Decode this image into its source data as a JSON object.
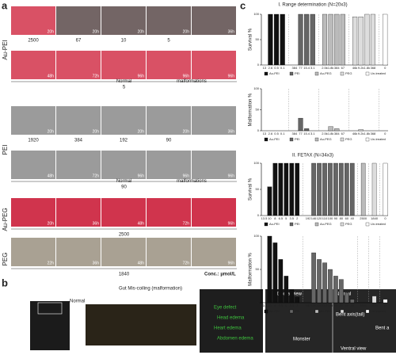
{
  "panel_a": {
    "label": "a",
    "unit": "Conc.: µmol/L",
    "groups": [
      {
        "name": "Au-PEI",
        "tint": "#d2324a",
        "rows": [
          {
            "times": [
              "20h",
              "20h",
              "20h",
              "20h",
              "36h"
            ],
            "concs": [
              "2500",
              "67",
              "10",
              "5"
            ]
          },
          {
            "times": [
              "48h",
              "72h",
              "96h",
              "96h",
              "96h"
            ],
            "concs": [
              "5"
            ],
            "normal": "Normal",
            "malformations": "malformations"
          }
        ]
      },
      {
        "name": "PEI",
        "tint": "#8a8a8a",
        "rows": [
          {
            "times": [
              "20h",
              "20h",
              "20h",
              "20h",
              "36h"
            ],
            "concs": [
              "1920",
              "384",
              "192",
              "90"
            ]
          },
          {
            "times": [
              "48h",
              "72h",
              "96h",
              "96h",
              "96h"
            ],
            "concs": [
              "90"
            ],
            "normal": "Normal",
            "malformations": "malformations"
          }
        ]
      },
      {
        "name": "Au-PEG",
        "tint": "#c8102e",
        "rows": [
          {
            "times": [
              "20h",
              "36h",
              "48h",
              "72h",
              "96h"
            ],
            "concs": [
              "2500"
            ]
          }
        ]
      },
      {
        "name": "PEG",
        "tint": "#9a9080",
        "rows": [
          {
            "times": [
              "22h",
              "36h",
              "48h",
              "72h",
              "96h"
            ],
            "concs": [
              "1840"
            ]
          }
        ]
      }
    ]
  },
  "panel_b": {
    "label": "b",
    "title": "Gut Mis-coiling (malformation)",
    "normal": "Normal",
    "left_labels": [
      "Eye defect",
      "Head edema",
      "Heart edema",
      "Abdomen edema"
    ],
    "right_labels": [
      "Dorsal view",
      "Normal",
      "Bent axis(tail)",
      "Bent a",
      "Monster",
      "Ventral view"
    ]
  },
  "panel_c": {
    "label": "c",
    "sections": [
      "I. Range determination (N=20x3)",
      "II. FETAX (N=34x3)"
    ]
  },
  "chart_data": [
    {
      "type": "bar",
      "ylabel": "Survival %",
      "ylim": [
        0,
        100
      ],
      "yticks": [
        0,
        50,
        100
      ],
      "series": [
        {
          "name": "Au-PEI",
          "color": "#111111",
          "categories": [
            "13",
            "2.6",
            "0.5",
            "0.1"
          ],
          "values": [
            0,
            100,
            100,
            100
          ]
        },
        {
          "name": "PEI",
          "color": "#666666",
          "categories": [
            "384",
            "77",
            "15.4",
            "3.1"
          ],
          "values": [
            0,
            100,
            100,
            100
          ]
        },
        {
          "name": "Au-PEG",
          "color": "#bbbbbb",
          "categories": [
            "2.5k",
            "1.8k",
            "384",
            "67"
          ],
          "values": [
            100,
            100,
            100,
            100
          ]
        },
        {
          "name": "PEG",
          "color": "#dddddd",
          "categories": [
            "46k",
            "9.2k",
            "1.8k",
            "368"
          ],
          "values": [
            95,
            95,
            100,
            100
          ]
        },
        {
          "name": "Un-treated",
          "color": "#ffffff",
          "categories": [
            "0"
          ],
          "values": [
            100
          ]
        }
      ]
    },
    {
      "type": "bar",
      "ylabel": "Malformation %",
      "ylim": [
        0,
        100
      ],
      "yticks": [
        0,
        50,
        100
      ],
      "series": [
        {
          "name": "Au-PEI",
          "color": "#111111",
          "categories": [
            "13",
            "2.6",
            "0.5",
            "0.1"
          ],
          "values": [
            null,
            0,
            0,
            0
          ]
        },
        {
          "name": "PEI",
          "color": "#666666",
          "categories": [
            "384",
            "77",
            "15.4",
            "3.1"
          ],
          "values": [
            null,
            30,
            5,
            0
          ]
        },
        {
          "name": "Au-PEG",
          "color": "#bbbbbb",
          "categories": [
            "2.5k",
            "1.8k",
            "384",
            "67"
          ],
          "values": [
            0,
            10,
            5,
            0
          ]
        },
        {
          "name": "PEG",
          "color": "#dddddd",
          "categories": [
            "46k",
            "9.2k",
            "1.8k",
            "368"
          ],
          "values": [
            0,
            3,
            0,
            0
          ]
        },
        {
          "name": "Un-treated",
          "color": "#ffffff",
          "categories": [
            "0"
          ],
          "values": [
            0
          ]
        }
      ]
    },
    {
      "type": "bar",
      "ylabel": "Survival %",
      "ylim": [
        0,
        100
      ],
      "yticks": [
        0,
        50,
        100
      ],
      "series": [
        {
          "name": "Au-PEI",
          "color": "#111111",
          "categories": [
            "13.5",
            "10",
            "8",
            "6.5",
            "5",
            "3.5",
            "2"
          ],
          "values": [
            0,
            55,
            100,
            100,
            100,
            100,
            100
          ]
        },
        {
          "name": "PEI",
          "color": "#666666",
          "categories": [
            "192",
            "146",
            "120",
            "110",
            "100",
            "90",
            "80",
            "60",
            "40"
          ],
          "values": [
            0,
            100,
            100,
            100,
            100,
            100,
            100,
            100,
            100
          ]
        },
        {
          "name": "Au-PEG",
          "color": "#bbbbbb",
          "categories": [
            "2500"
          ],
          "values": [
            100
          ]
        },
        {
          "name": "PEG",
          "color": "#dddddd",
          "categories": [
            "1840"
          ],
          "values": [
            100
          ]
        },
        {
          "name": "Un-treated",
          "color": "#ffffff",
          "categories": [
            "0"
          ],
          "values": [
            100
          ]
        }
      ]
    },
    {
      "type": "bar",
      "ylabel": "Malformation %",
      "ylim": [
        0,
        100
      ],
      "yticks": [
        0,
        50,
        100
      ],
      "series": [
        {
          "name": "Au-PEI",
          "color": "#111111",
          "categories": [
            "13.5",
            "10",
            "8",
            "6.5",
            "5",
            "3.5",
            "2"
          ],
          "values": [
            null,
            100,
            90,
            65,
            40,
            20,
            8
          ]
        },
        {
          "name": "PEI",
          "color": "#666666",
          "categories": [
            "192",
            "146",
            "120",
            "110",
            "100",
            "90",
            "80",
            "60",
            "40"
          ],
          "values": [
            null,
            75,
            65,
            60,
            50,
            40,
            35,
            15,
            5
          ]
        },
        {
          "name": "Au-PEG",
          "color": "#bbbbbb",
          "categories": [
            "2500"
          ],
          "values": [
            0
          ]
        },
        {
          "name": "PEG",
          "color": "#dddddd",
          "categories": [
            "1840"
          ],
          "values": [
            10
          ]
        },
        {
          "name": "Un-treated",
          "color": "#ffffff",
          "categories": [
            "0"
          ],
          "values": [
            5
          ]
        }
      ]
    }
  ]
}
